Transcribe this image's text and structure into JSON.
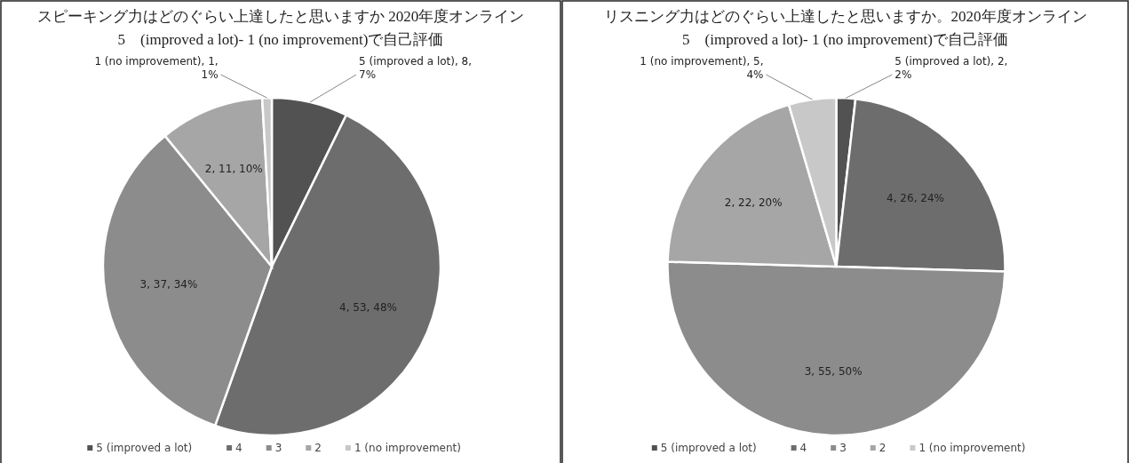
{
  "chart_data": [
    {
      "type": "pie",
      "title": "スピーキング力はどのぐらい上達したと思いますか 2020年度オンライン",
      "subtitle": "5　(improved a lot)- 1 (no improvement)で自己評価",
      "categories": [
        "5 (improved a lot)",
        "4",
        "3",
        "2",
        "1 (no improvement)"
      ],
      "values": [
        8,
        53,
        37,
        11,
        1
      ],
      "colors": [
        "#525252",
        "#6d6d6d",
        "#8c8c8c",
        "#a6a6a6",
        "#c8c8c8"
      ],
      "value_labels": [
        "5 (improved a lot), 8, 7%",
        "4, 53, 48%",
        "3, 37, 34%",
        "2, 11, 10%",
        "1 (no improvement), 1, 1%"
      ],
      "legend": "bottom"
    },
    {
      "type": "pie",
      "title": "リスニング力はどのぐらい上達したと思いますか。2020年度オンライン",
      "subtitle": "5　(improved a lot)- 1 (no improvement)で自己評価",
      "categories": [
        "5 (improved a lot)",
        "4",
        "3",
        "2",
        "1 (no improvement)"
      ],
      "values": [
        2,
        26,
        55,
        22,
        5
      ],
      "colors": [
        "#525252",
        "#6d6d6d",
        "#8c8c8c",
        "#a6a6a6",
        "#c8c8c8"
      ],
      "value_labels": [
        "5 (improved a lot), 2, 2%",
        "4, 26, 24%",
        "3, 55, 50%",
        "2, 22, 20%",
        "1 (no improvement), 5, 4%"
      ],
      "legend": "bottom"
    }
  ]
}
